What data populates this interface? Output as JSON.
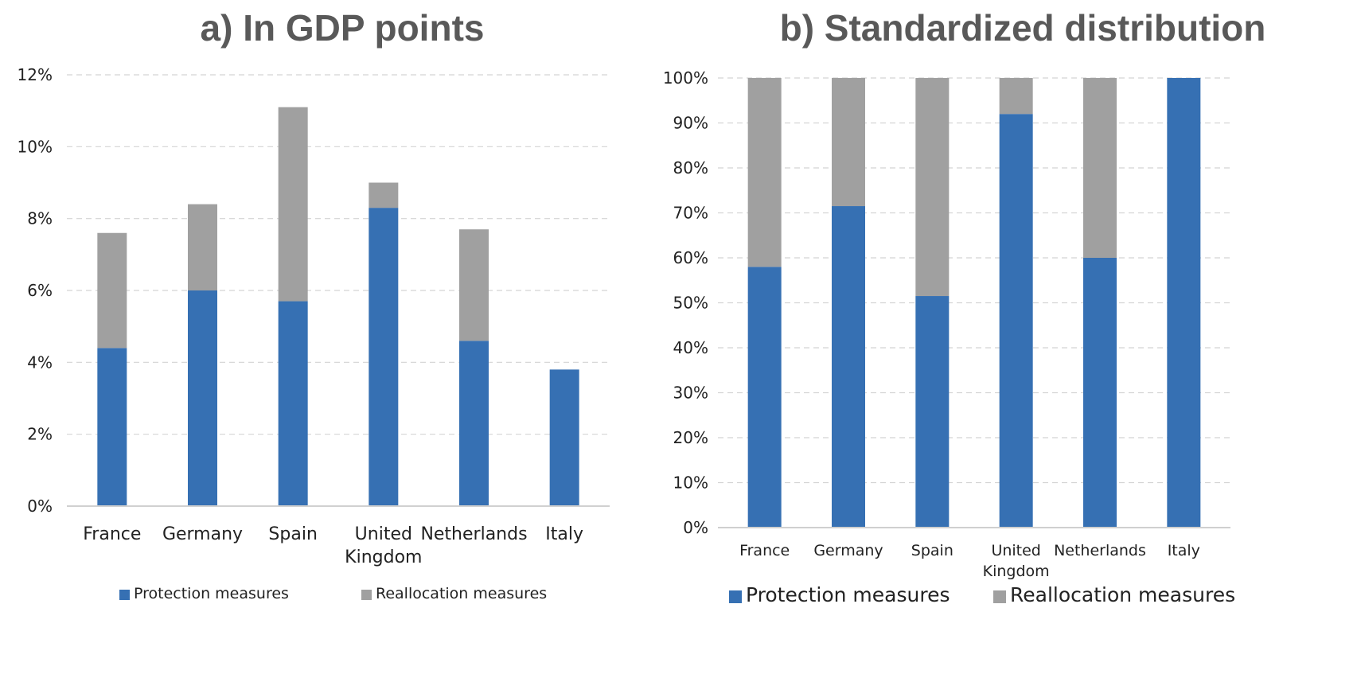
{
  "chart_data": [
    {
      "type": "bar",
      "stacked": true,
      "title": "a) In GDP points",
      "categories": [
        [
          "France"
        ],
        [
          "Germany"
        ],
        [
          "Spain"
        ],
        [
          "United",
          "Kingdom"
        ],
        [
          "Netherlands"
        ],
        [
          "Italy"
        ]
      ],
      "series": [
        {
          "name": "Protection measures",
          "color": "#3670b3",
          "values": [
            4.4,
            6.0,
            5.7,
            8.3,
            4.6,
            3.8
          ]
        },
        {
          "name": "Reallocation measures",
          "color": "#a0a0a0",
          "values": [
            3.2,
            2.4,
            5.4,
            0.7,
            3.1,
            0.0
          ]
        }
      ],
      "ylim": [
        0,
        12
      ],
      "yticks": [
        0,
        2,
        4,
        6,
        8,
        10,
        12
      ],
      "ytick_labels": [
        "0%",
        "2%",
        "4%",
        "6%",
        "8%",
        "10%",
        "12%"
      ],
      "grid": true,
      "legend": "bottom"
    },
    {
      "type": "bar",
      "stacked": true,
      "title": "b) Standardized distribution",
      "categories": [
        [
          "France"
        ],
        [
          "Germany"
        ],
        [
          "Spain"
        ],
        [
          "United",
          "Kingdom"
        ],
        [
          "Netherlands"
        ],
        [
          "Italy"
        ]
      ],
      "series": [
        {
          "name": "Protection measures",
          "color": "#3670b3",
          "values": [
            58,
            71.5,
            51.5,
            92,
            60,
            100
          ]
        },
        {
          "name": "Reallocation measures",
          "color": "#a0a0a0",
          "values": [
            42,
            28.5,
            48.5,
            8,
            40,
            0
          ]
        }
      ],
      "ylim": [
        0,
        100
      ],
      "yticks": [
        0,
        10,
        20,
        30,
        40,
        50,
        60,
        70,
        80,
        90,
        100
      ],
      "ytick_labels": [
        "0%",
        "10%",
        "20%",
        "30%",
        "40%",
        "50%",
        "60%",
        "70%",
        "80%",
        "90%",
        "100%"
      ],
      "grid": true,
      "legend": "bottom"
    }
  ]
}
